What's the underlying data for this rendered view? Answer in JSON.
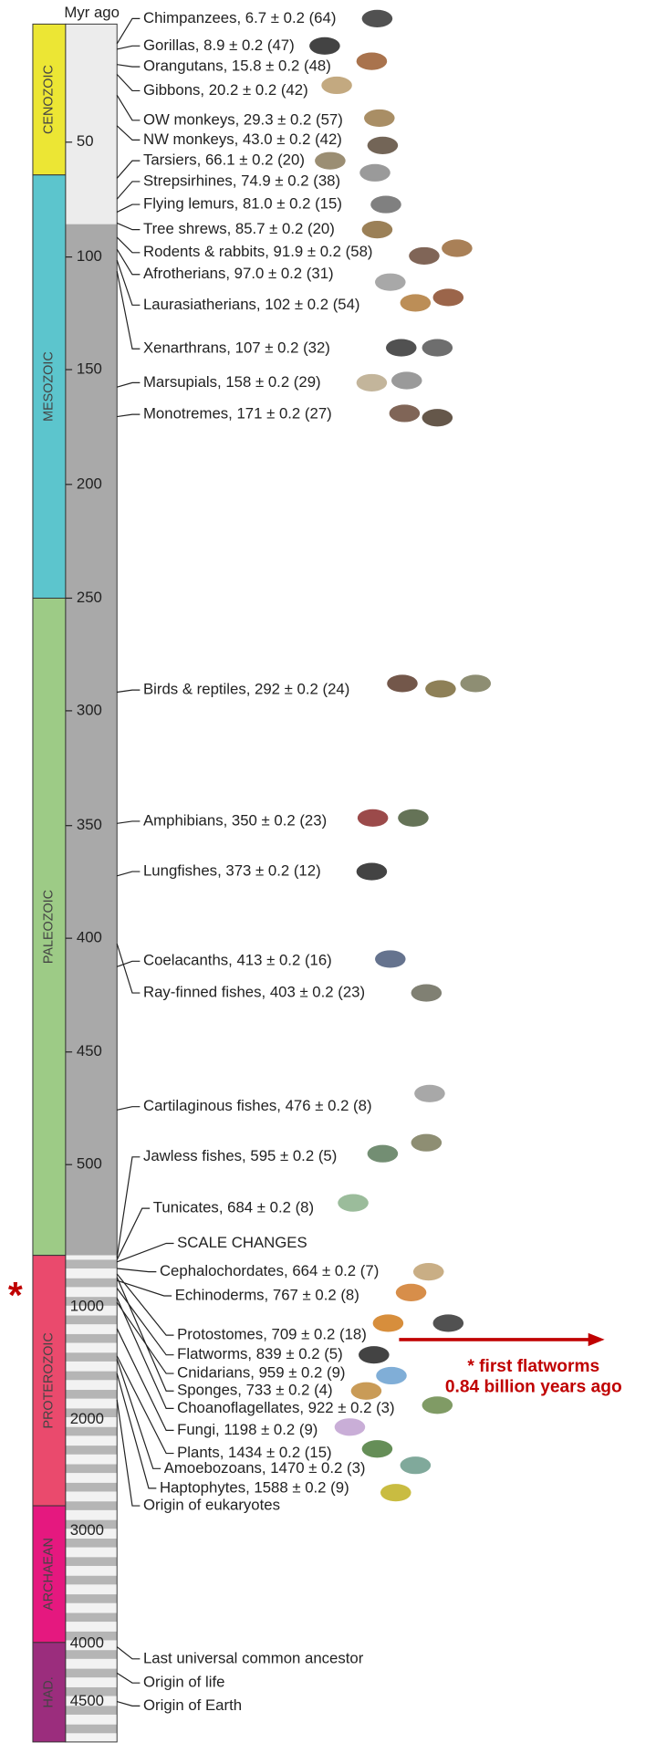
{
  "axis_label": "Myr ago",
  "eras": [
    "CENOZOIC",
    "MESOZOIC",
    "PALEOZOIC",
    "PROTEROZOIC",
    "ARCHAEAN",
    "HAD."
  ],
  "scale_ticks": [
    50,
    100,
    150,
    200,
    250,
    300,
    350,
    400,
    450,
    500
  ],
  "deep_ticks": [
    1000,
    2000,
    3000,
    4000,
    4500
  ],
  "labels": [
    "Chimpanzees, 6.7 ± 0.2 (64)",
    "Gorillas, 8.9 ± 0.2 (47)",
    "Orangutans, 15.8 ± 0.2 (48)",
    "Gibbons, 20.2 ± 0.2 (42)",
    "OW monkeys, 29.3 ± 0.2 (57)",
    "NW monkeys, 43.0 ± 0.2 (42)",
    "Tarsiers, 66.1 ± 0.2 (20)",
    "Strepsirhines, 74.9 ± 0.2 (38)",
    "Flying lemurs, 81.0 ± 0.2 (15)",
    "Tree shrews, 85.7 ± 0.2 (20)",
    "Rodents & rabbits, 91.9 ± 0.2 (58)",
    "Afrotherians, 97.0 ± 0.2 (31)",
    "Laurasiatherians, 102 ± 0.2 (54)",
    "Xenarthrans, 107 ± 0.2 (32)",
    "Marsupials, 158 ± 0.2 (29)",
    "Monotremes, 171 ± 0.2 (27)",
    "Birds & reptiles, 292 ± 0.2 (24)",
    "Amphibians, 350 ± 0.2 (23)",
    "Lungfishes, 373 ± 0.2 (12)",
    "Coelacanths, 413 ± 0.2 (16)",
    "Ray-finned fishes, 403 ± 0.2 (23)",
    "Cartilaginous fishes, 476 ± 0.2 (8)",
    "Jawless fishes, 595 ± 0.2 (5)",
    "Tunicates, 684 ± 0.2 (8)",
    "SCALE CHANGES",
    "Cephalochordates, 664 ± 0.2 (7)",
    "Echinoderms, 767 ± 0.2 (8)",
    "Protostomes, 709 ± 0.2 (18)",
    "Flatworms, 839 ± 0.2 (5)",
    "Cnidarians, 959 ± 0.2 (9)",
    "Sponges, 733 ± 0.2 (4)",
    "Choanoflagellates, 922 ± 0.2 (3)",
    "Fungi, 1198 ± 0.2 (9)",
    "Plants, 1434 ± 0.2 (15)",
    "Amoebozoans, 1470 ± 0.2 (3)",
    "Haptophytes, 1588 ± 0.2 (9)",
    "Origin of eukaryotes",
    "Last universal common ancestor",
    "Origin of life",
    "Origin of Earth"
  ],
  "annotation": {
    "marker": "*",
    "lines": [
      "* first flatworms",
      "0.84 billion years ago"
    ]
  }
}
